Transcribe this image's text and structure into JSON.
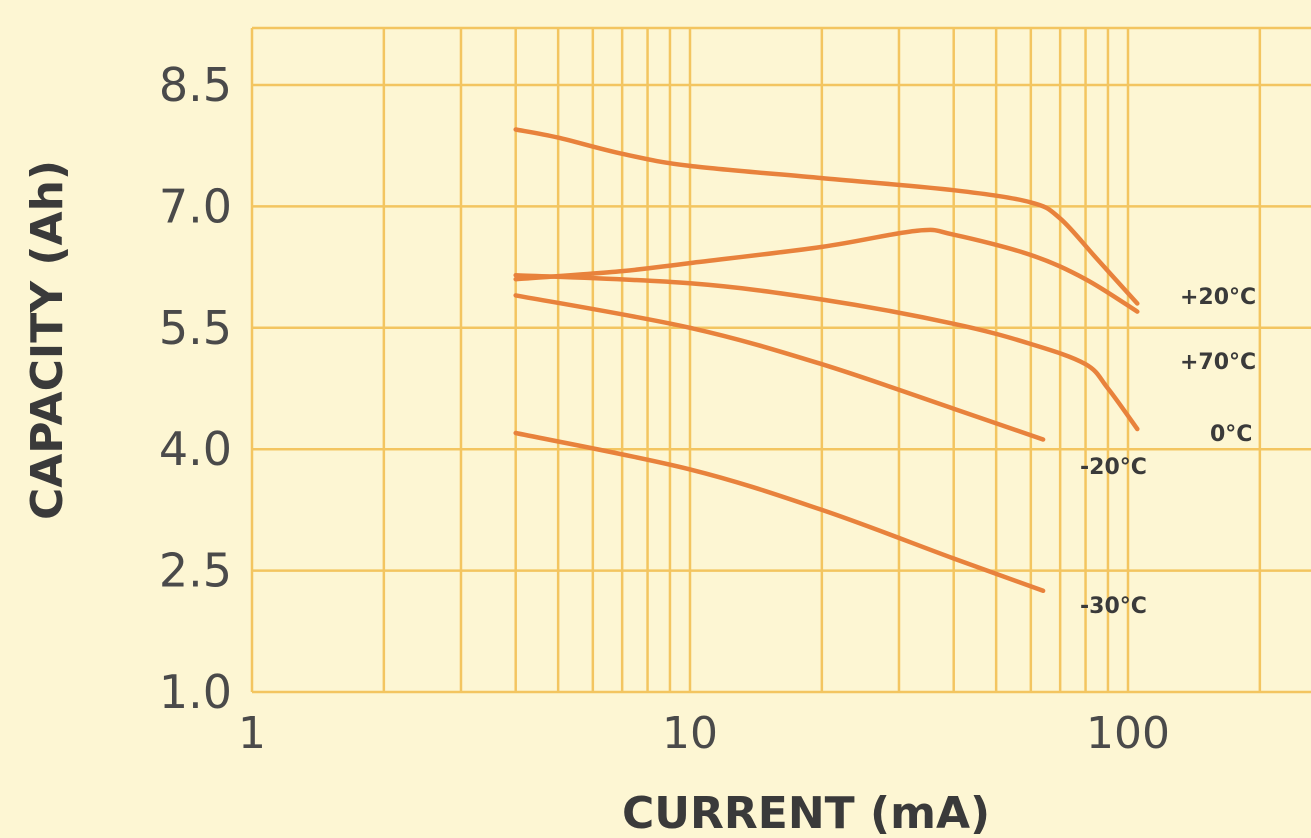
{
  "chart_data": {
    "type": "line",
    "title": "",
    "xlabel": "CURRENT (mA)",
    "ylabel": "CAPACITY (Ah)",
    "x_scale": "log",
    "xlim": [
      1,
      200
    ],
    "ylim": [
      1.0,
      9.2
    ],
    "x_ticks": [
      1,
      10,
      100
    ],
    "x_tick_labels": [
      "1",
      "10",
      "100"
    ],
    "y_ticks": [
      1.0,
      2.5,
      4.0,
      5.5,
      7.0,
      8.5
    ],
    "y_tick_labels": [
      "1.0",
      "2.5",
      "4.0",
      "5.5",
      "7.0",
      "8.5"
    ],
    "grid": true,
    "legend": "inline labels at line ends",
    "colors": {
      "background": "#fdf6d3",
      "grid": "#f3c560",
      "line": "#e8823c",
      "text": "#4a4a4a"
    },
    "series": [
      {
        "name": "+20°C",
        "x": [
          4,
          5,
          7,
          10,
          20,
          40,
          60,
          70,
          85,
          105
        ],
        "y": [
          7.95,
          7.85,
          7.65,
          7.5,
          7.35,
          7.2,
          7.05,
          6.85,
          6.35,
          5.8
        ]
      },
      {
        "name": "+70°C",
        "x": [
          4,
          7,
          10,
          20,
          33,
          40,
          60,
          80,
          105
        ],
        "y": [
          6.1,
          6.2,
          6.3,
          6.5,
          6.7,
          6.65,
          6.4,
          6.1,
          5.7
        ]
      },
      {
        "name": "0°C",
        "x": [
          4,
          10,
          20,
          40,
          60,
          80,
          90,
          105
        ],
        "y": [
          6.15,
          6.05,
          5.85,
          5.55,
          5.3,
          5.05,
          4.75,
          4.25
        ]
      },
      {
        "name": "-20°C",
        "x": [
          4,
          10,
          20,
          40,
          64
        ],
        "y": [
          5.9,
          5.5,
          5.05,
          4.5,
          4.12
        ]
      },
      {
        "name": "-30°C",
        "x": [
          4,
          10,
          20,
          40,
          64
        ],
        "y": [
          4.2,
          3.75,
          3.25,
          2.65,
          2.25
        ]
      }
    ]
  }
}
